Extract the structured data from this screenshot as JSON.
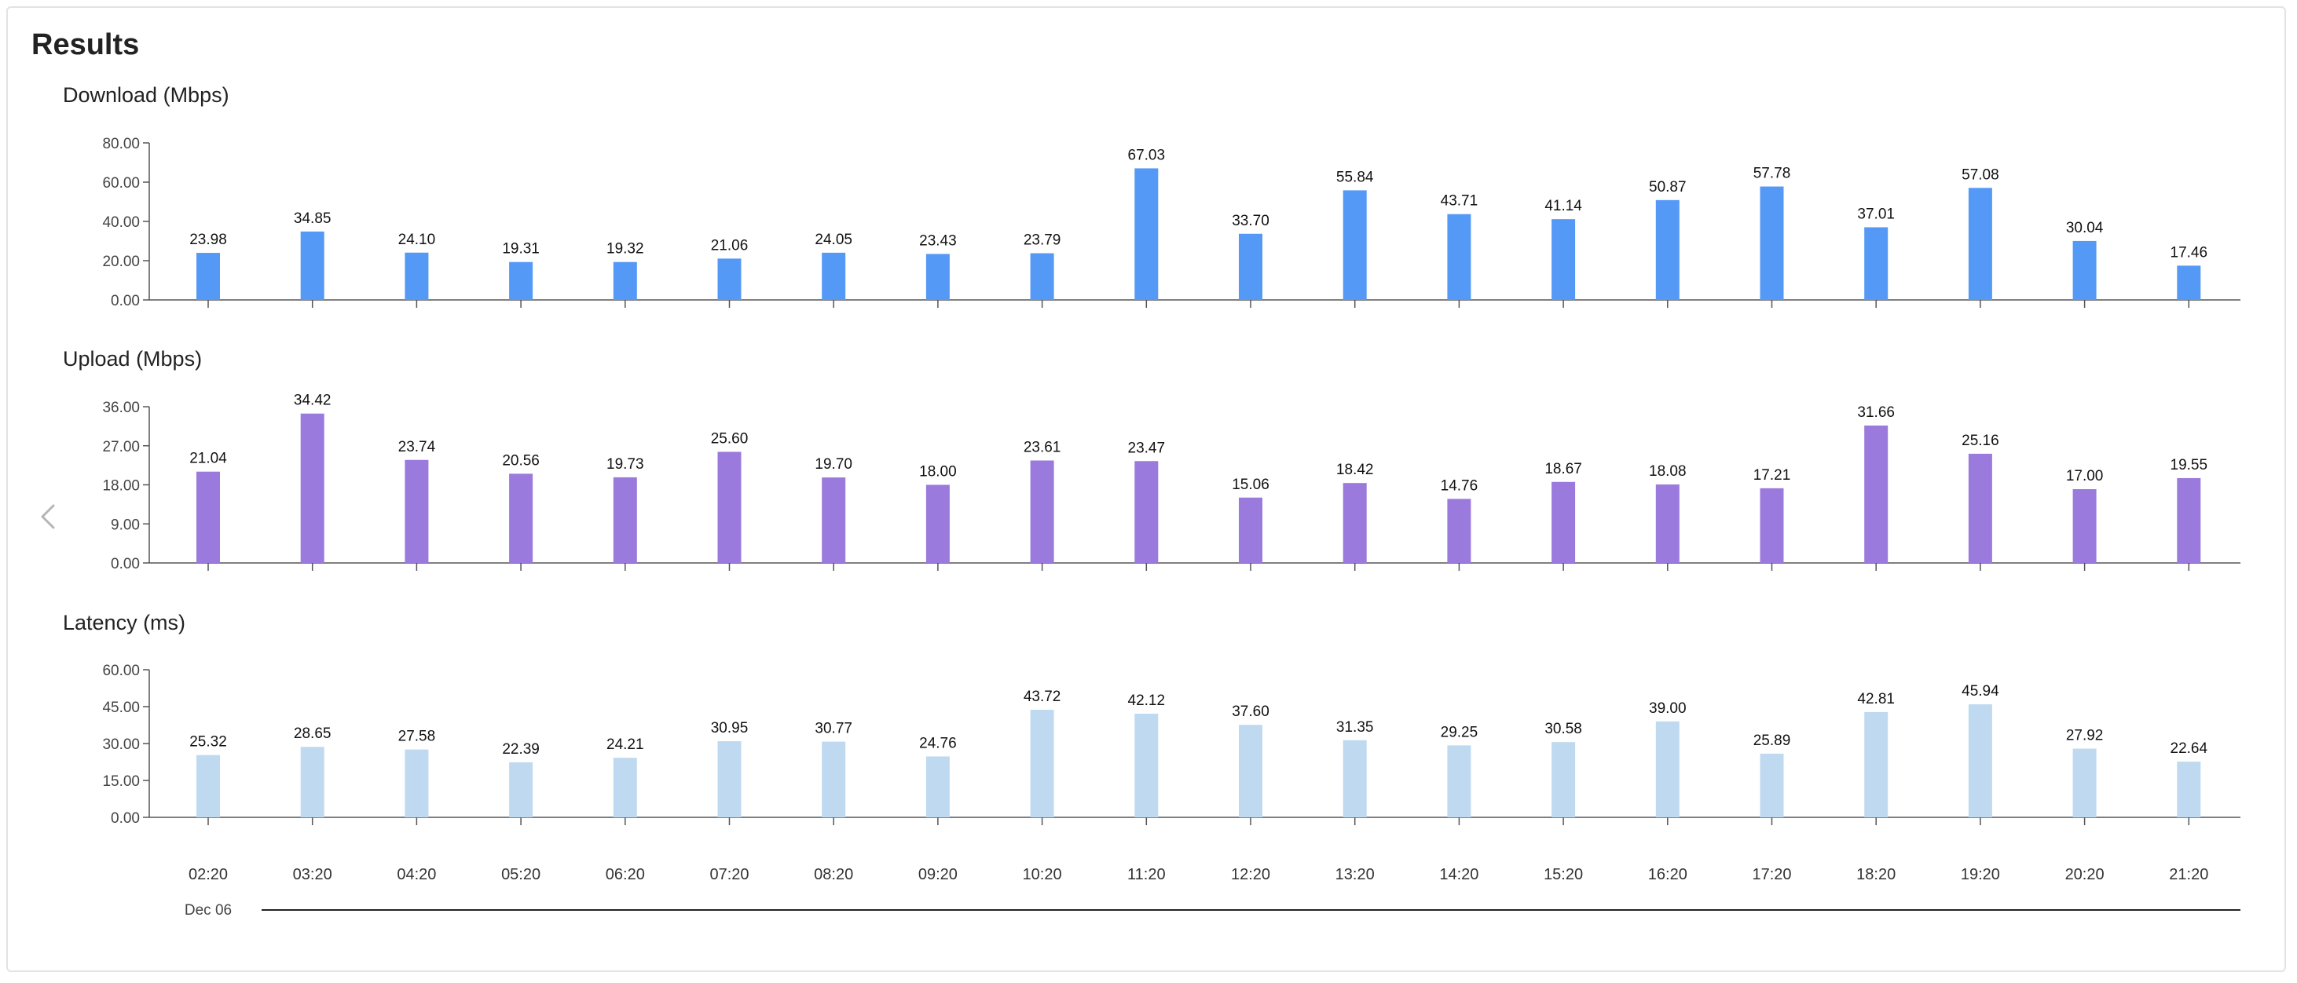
{
  "page": {
    "title": "Results"
  },
  "chart_data": [
    {
      "type": "bar",
      "title": "Download (Mbps)",
      "color": "#5599f6",
      "ylim": [
        0,
        80
      ],
      "yticks": [
        "0.00",
        "20.00",
        "40.00",
        "60.00",
        "80.00"
      ],
      "categories": [
        "02:20",
        "03:20",
        "04:20",
        "05:20",
        "06:20",
        "07:20",
        "08:20",
        "09:20",
        "10:20",
        "11:20",
        "12:20",
        "13:20",
        "14:20",
        "15:20",
        "16:20",
        "17:20",
        "18:20",
        "19:20",
        "20:20",
        "21:20"
      ],
      "values": [
        23.98,
        34.85,
        24.1,
        19.31,
        19.32,
        21.06,
        24.05,
        23.43,
        23.79,
        67.03,
        33.7,
        55.84,
        43.71,
        41.14,
        50.87,
        57.78,
        37.01,
        57.08,
        30.04,
        17.46
      ],
      "labels": [
        "23.98",
        "34.85",
        "24.10",
        "19.31",
        "19.32",
        "21.06",
        "24.05",
        "23.43",
        "23.79",
        "67.03",
        "33.70",
        "55.84",
        "43.71",
        "41.14",
        "50.87",
        "57.78",
        "37.01",
        "57.08",
        "30.04",
        "17.46"
      ]
    },
    {
      "type": "bar",
      "title": "Upload (Mbps)",
      "color": "#9b7add",
      "ylim": [
        0,
        36
      ],
      "yticks": [
        "0.00",
        "9.00",
        "18.00",
        "27.00",
        "36.00"
      ],
      "categories": [
        "02:20",
        "03:20",
        "04:20",
        "05:20",
        "06:20",
        "07:20",
        "08:20",
        "09:20",
        "10:20",
        "11:20",
        "12:20",
        "13:20",
        "14:20",
        "15:20",
        "16:20",
        "17:20",
        "18:20",
        "19:20",
        "20:20",
        "21:20"
      ],
      "values": [
        21.04,
        34.42,
        23.74,
        20.56,
        19.73,
        25.6,
        19.7,
        18.0,
        23.61,
        23.47,
        15.06,
        18.42,
        14.76,
        18.67,
        18.08,
        17.21,
        31.66,
        25.16,
        17.0,
        19.55
      ],
      "labels": [
        "21.04",
        "34.42",
        "23.74",
        "20.56",
        "19.73",
        "25.60",
        "19.70",
        "18.00",
        "23.61",
        "23.47",
        "15.06",
        "18.42",
        "14.76",
        "18.67",
        "18.08",
        "17.21",
        "31.66",
        "25.16",
        "17.00",
        "19.55"
      ]
    },
    {
      "type": "bar",
      "title": "Latency (ms)",
      "color": "#bfdaf0",
      "ylim": [
        0,
        60
      ],
      "yticks": [
        "0.00",
        "15.00",
        "30.00",
        "45.00",
        "60.00"
      ],
      "categories": [
        "02:20",
        "03:20",
        "04:20",
        "05:20",
        "06:20",
        "07:20",
        "08:20",
        "09:20",
        "10:20",
        "11:20",
        "12:20",
        "13:20",
        "14:20",
        "15:20",
        "16:20",
        "17:20",
        "18:20",
        "19:20",
        "20:20",
        "21:20"
      ],
      "values": [
        25.32,
        28.65,
        27.58,
        22.39,
        24.21,
        30.95,
        30.77,
        24.76,
        43.72,
        42.12,
        37.6,
        31.35,
        29.25,
        30.58,
        39.0,
        25.89,
        42.81,
        45.94,
        27.92,
        22.64
      ],
      "labels": [
        "25.32",
        "28.65",
        "27.58",
        "22.39",
        "24.21",
        "30.95",
        "30.77",
        "24.76",
        "43.72",
        "42.12",
        "37.60",
        "31.35",
        "29.25",
        "30.58",
        "39.00",
        "25.89",
        "42.81",
        "45.94",
        "27.92",
        "22.64"
      ]
    }
  ],
  "time_axis": {
    "labels": [
      "02:20",
      "03:20",
      "04:20",
      "05:20",
      "06:20",
      "07:20",
      "08:20",
      "09:20",
      "10:20",
      "11:20",
      "12:20",
      "13:20",
      "14:20",
      "15:20",
      "16:20",
      "17:20",
      "18:20",
      "19:20",
      "20:20",
      "21:20"
    ],
    "date_label": "Dec 06"
  },
  "nav": {
    "prev_icon": "chevron-left-icon"
  }
}
